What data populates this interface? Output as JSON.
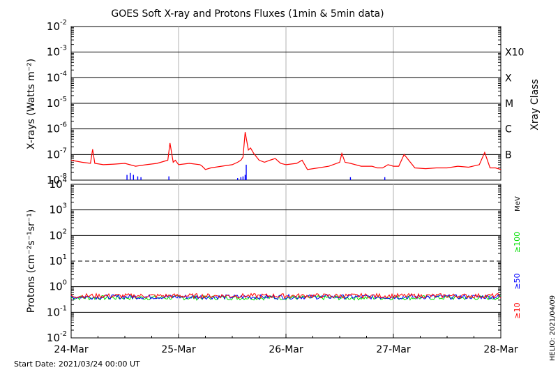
{
  "chart_data": [
    {
      "type": "line",
      "title": "GOES Soft X-ray and Protons Fluxes   (1min & 5min data)",
      "ylabel": "X-rays (Watts m⁻²)",
      "yscale": "log",
      "ylim": [
        1e-08,
        0.01
      ],
      "y_ticks": [
        {
          "base": "10",
          "exp": "-8"
        },
        {
          "base": "10",
          "exp": "-7"
        },
        {
          "base": "10",
          "exp": "-6"
        },
        {
          "base": "10",
          "exp": "-5"
        },
        {
          "base": "10",
          "exp": "-4"
        },
        {
          "base": "10",
          "exp": "-3"
        },
        {
          "base": "10",
          "exp": "-2"
        }
      ],
      "xray_class_label": "Xray Class",
      "xray_classes": [
        {
          "label": "B",
          "flux": 1e-07
        },
        {
          "label": "C",
          "flux": 1e-06
        },
        {
          "label": "M",
          "flux": 1e-05
        },
        {
          "label": "X",
          "flux": 0.0001
        },
        {
          "label": "X10",
          "flux": 0.001
        }
      ],
      "series": [
        {
          "color": "#ff0000",
          "x": [
            0.0,
            0.1,
            0.18,
            0.2,
            0.22,
            0.3,
            0.4,
            0.5,
            0.6,
            0.7,
            0.8,
            0.9,
            0.92,
            0.95,
            0.97,
            1.0,
            1.1,
            1.2,
            1.22,
            1.25,
            1.3,
            1.4,
            1.5,
            1.55,
            1.58,
            1.6,
            1.62,
            1.65,
            1.67,
            1.7,
            1.75,
            1.8,
            1.85,
            1.9,
            1.95,
            2.0,
            2.1,
            2.15,
            2.2,
            2.3,
            2.4,
            2.5,
            2.52,
            2.55,
            2.6,
            2.7,
            2.8,
            2.85,
            2.9,
            2.95,
            3.0,
            3.05,
            3.1,
            3.2,
            3.3,
            3.4,
            3.5,
            3.6,
            3.7,
            3.8,
            3.85,
            3.9,
            3.95,
            4.0
          ],
          "y": [
            6e-08,
            5e-08,
            4.5e-08,
            1.6e-07,
            4.5e-08,
            4e-08,
            4.2e-08,
            4.5e-08,
            3.5e-08,
            4e-08,
            4.5e-08,
            6e-08,
            2.8e-07,
            5e-08,
            6e-08,
            4e-08,
            4.5e-08,
            4e-08,
            3.5e-08,
            2.6e-08,
            3e-08,
            3.5e-08,
            4e-08,
            5e-08,
            6e-08,
            8e-08,
            7.5e-07,
            1.5e-07,
            1.8e-07,
            1.1e-07,
            6e-08,
            5e-08,
            6e-08,
            7e-08,
            4.5e-08,
            4e-08,
            4.5e-08,
            6e-08,
            2.6e-08,
            3e-08,
            3.5e-08,
            5e-08,
            1.1e-07,
            5e-08,
            4.5e-08,
            3.5e-08,
            3.5e-08,
            3e-08,
            3e-08,
            4e-08,
            3.5e-08,
            3.5e-08,
            1e-07,
            3e-08,
            2.8e-08,
            3e-08,
            3e-08,
            3.5e-08,
            3.2e-08,
            4e-08,
            1.2e-07,
            3e-08,
            3e-08,
            2.6e-08
          ]
        },
        {
          "color": "#0000ff",
          "x": [
            0.5,
            0.52,
            0.55,
            0.58,
            0.62,
            0.65,
            0.7,
            0.9,
            0.91,
            0.92,
            1.5,
            1.55,
            1.58,
            1.6,
            1.62,
            1.63,
            1.64,
            2.55,
            2.6,
            2.65,
            2.9,
            2.92
          ],
          "y": [
            1e-08,
            1.6e-08,
            1.9e-08,
            1.6e-08,
            1.4e-08,
            1.3e-08,
            1e-08,
            1e-08,
            1.4e-08,
            1e-08,
            1e-08,
            1.2e-08,
            1.3e-08,
            1.4e-08,
            1.6e-08,
            4e-08,
            1e-08,
            1e-08,
            1.3e-08,
            1e-08,
            1e-08,
            1.3e-08
          ]
        }
      ]
    },
    {
      "type": "line",
      "ylabel": "Protons (cm⁻²s⁻¹sr⁻¹)",
      "yscale": "log",
      "ylim": [
        0.01,
        10000
      ],
      "y_ticks": [
        {
          "base": "10",
          "exp": "-2"
        },
        {
          "base": "10",
          "exp": "-1"
        },
        {
          "base": "10",
          "exp": "0"
        },
        {
          "base": "10",
          "exp": "1"
        },
        {
          "base": "10",
          "exp": "2"
        },
        {
          "base": "10",
          "exp": "3"
        },
        {
          "base": "10",
          "exp": "4"
        }
      ],
      "threshold_line": 10,
      "unit_label": "MeV",
      "series": [
        {
          "name": "≥10",
          "color": "#ff0000",
          "level": 0.44
        },
        {
          "name": "≥50",
          "color": "#0000ff",
          "level": 0.4
        },
        {
          "name": "≥100",
          "color": "#00e000",
          "level": 0.37
        }
      ]
    }
  ],
  "x_axis": {
    "start": "24-Mar",
    "end": "28-Mar",
    "tick_labels": [
      "24-Mar",
      "25-Mar",
      "26-Mar",
      "27-Mar",
      "28-Mar"
    ]
  },
  "footer": {
    "start_date": "Start Date: 2021/03/24 00:00 UT",
    "generated": "HELIO: 2021/04/09"
  }
}
